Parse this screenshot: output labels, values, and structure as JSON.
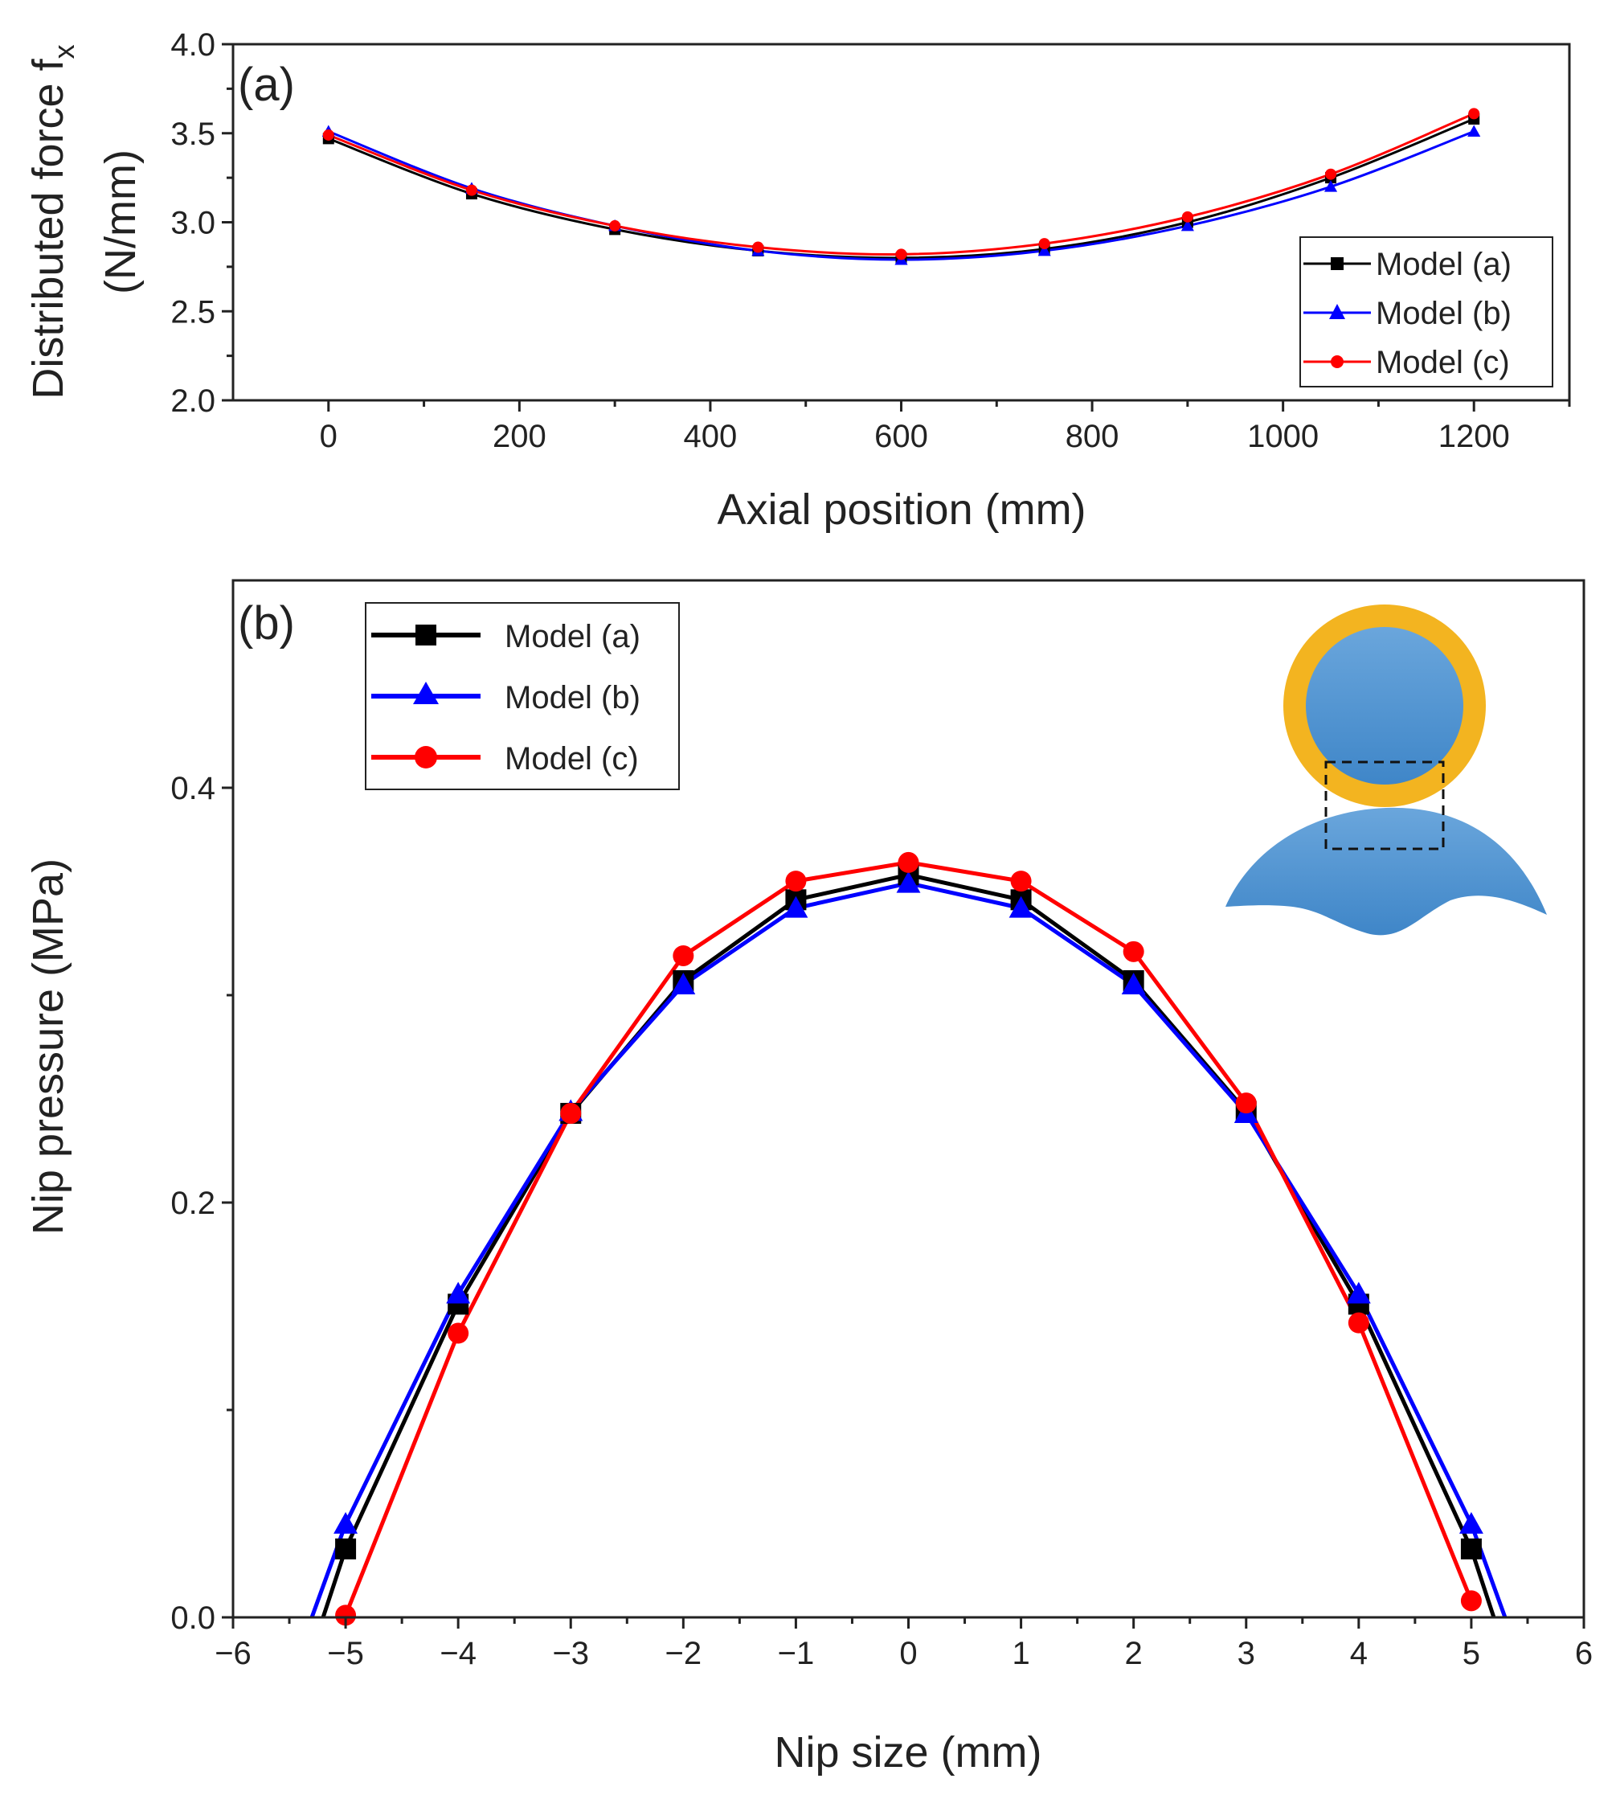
{
  "chart_data": [
    {
      "panel_label": "(a)",
      "type": "line",
      "xlabel": "Axial position (mm)",
      "ylabel_line1": "Distributed force f",
      "ylabel_subscript": "x",
      "ylabel_line2": "(N/mm)",
      "xlim": [
        -100,
        1300
      ],
      "ylim": [
        2.0,
        4.0
      ],
      "xticks": [
        0,
        200,
        400,
        600,
        800,
        1000,
        1200
      ],
      "yticks": [
        2.0,
        2.5,
        3.0,
        3.5,
        4.0
      ],
      "xtick_labels": [
        "0",
        "200",
        "400",
        "600",
        "800",
        "1000",
        "1200"
      ],
      "ytick_labels": [
        "2.0",
        "2.5",
        "3.0",
        "3.5",
        "4.0"
      ],
      "grid": false,
      "legend_position": "bottom-right",
      "x": [
        0,
        150,
        300,
        450,
        600,
        750,
        900,
        1050,
        1200
      ],
      "series": [
        {
          "name": "Model (a)",
          "color": "#000000",
          "marker": "square",
          "values": [
            3.47,
            3.16,
            2.96,
            2.84,
            2.8,
            2.85,
            3.0,
            3.25,
            3.58
          ]
        },
        {
          "name": "Model (b)",
          "color": "#0000ff",
          "marker": "triangle",
          "values": [
            3.51,
            3.19,
            2.98,
            2.84,
            2.79,
            2.84,
            2.98,
            3.2,
            3.51
          ]
        },
        {
          "name": "Model (c)",
          "color": "#ff0000",
          "marker": "circle",
          "values": [
            3.49,
            3.18,
            2.98,
            2.86,
            2.82,
            2.88,
            3.03,
            3.27,
            3.61
          ]
        }
      ]
    },
    {
      "panel_label": "(b)",
      "type": "line",
      "xlabel": "Nip size (mm)",
      "ylabel": "Nip pressure (MPa)",
      "xlim": [
        -6,
        6
      ],
      "ylim": [
        0,
        0.5
      ],
      "xticks": [
        -6,
        -5,
        -4,
        -3,
        -2,
        -1,
        0,
        1,
        2,
        3,
        4,
        5,
        6
      ],
      "yticks": [
        0.0,
        0.2,
        0.4
      ],
      "xtick_labels": [
        "−6",
        "−5",
        "−4",
        "−3",
        "−2",
        "−1",
        "0",
        "1",
        "2",
        "3",
        "4",
        "5",
        "6"
      ],
      "ytick_labels": [
        "0.0",
        "0.2",
        "0.4"
      ],
      "grid": false,
      "legend_position": "top-left",
      "series": [
        {
          "name": "Model (a)",
          "color": "#000000",
          "marker": "square",
          "x": [
            -5.2,
            -5,
            -4,
            -3,
            -2,
            -1,
            0,
            1,
            2,
            3,
            4,
            5,
            5.2
          ],
          "values": [
            0.0,
            0.033,
            0.151,
            0.243,
            0.307,
            0.346,
            0.358,
            0.346,
            0.307,
            0.244,
            0.151,
            0.033,
            0.0
          ]
        },
        {
          "name": "Model (b)",
          "color": "#0000ff",
          "marker": "triangle",
          "x": [
            -5.3,
            -5,
            -4,
            -3,
            -2,
            -1,
            0,
            1,
            2,
            3,
            4,
            5,
            5.3
          ],
          "values": [
            0.0,
            0.045,
            0.156,
            0.244,
            0.305,
            0.342,
            0.354,
            0.342,
            0.305,
            0.243,
            0.156,
            0.045,
            0.0
          ],
          "marker_indices": [
            1,
            2,
            3,
            4,
            5,
            6,
            7,
            8,
            9,
            10,
            11
          ]
        },
        {
          "name": "Model (c)",
          "color": "#ff0000",
          "marker": "circle",
          "x": [
            -5,
            -4,
            -3,
            -2,
            -1,
            0,
            1,
            2,
            3,
            4,
            5
          ],
          "values": [
            0.001,
            0.137,
            0.243,
            0.319,
            0.355,
            0.364,
            0.355,
            0.321,
            0.248,
            0.142,
            0.008
          ]
        }
      ]
    }
  ]
}
